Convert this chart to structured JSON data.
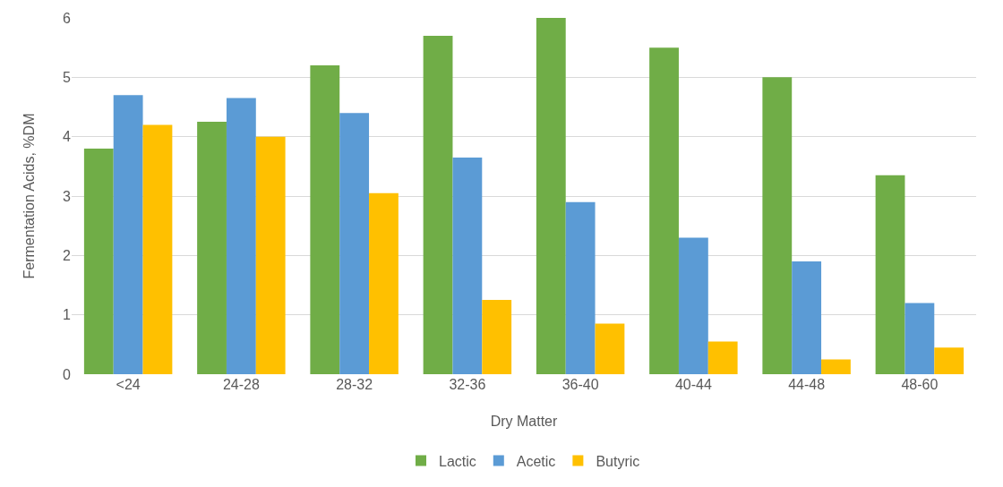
{
  "chart_data": {
    "type": "bar",
    "xlabel": "Dry Matter",
    "ylabel": "Fermentation Acids, %DM",
    "categories": [
      "<24",
      "24-28",
      "28-32",
      "32-36",
      "36-40",
      "40-44",
      "44-48",
      "48-60"
    ],
    "series": [
      {
        "name": "Lactic",
        "color": "#70ad47",
        "values": [
          3.8,
          4.25,
          5.2,
          5.7,
          6.0,
          5.5,
          5.0,
          3.35
        ]
      },
      {
        "name": "Acetic",
        "color": "#5b9bd5",
        "values": [
          4.7,
          4.65,
          4.4,
          3.65,
          2.9,
          2.3,
          1.9,
          1.2
        ]
      },
      {
        "name": "Butyric",
        "color": "#ffc000",
        "values": [
          4.2,
          4.0,
          3.05,
          1.25,
          0.85,
          0.55,
          0.25,
          0.45
        ]
      }
    ],
    "ylim": [
      0,
      6
    ],
    "yticks": [
      0,
      1,
      2,
      3,
      4,
      5,
      6
    ],
    "grid": "y",
    "legend": "bottom"
  }
}
